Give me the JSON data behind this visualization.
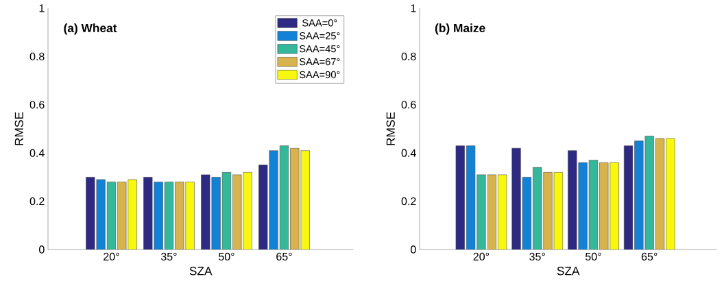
{
  "chart_data": [
    {
      "type": "bar",
      "annotations": [
        "(a) Wheat"
      ],
      "xlabel": "SZA",
      "ylabel": "RMSE",
      "categories": [
        "20°",
        "35°",
        "50°",
        "65°"
      ],
      "ylim": [
        0,
        1
      ],
      "yticks": [
        0,
        0.2,
        0.4,
        0.6,
        0.8,
        1
      ],
      "legend": "top right",
      "series": [
        {
          "name": "SAA=0°",
          "color": "#2e2a83",
          "values": [
            0.3,
            0.3,
            0.31,
            0.35
          ]
        },
        {
          "name": "SAA=25°",
          "color": "#1282d6",
          "values": [
            0.29,
            0.28,
            0.3,
            0.41
          ]
        },
        {
          "name": "SAA=45°",
          "color": "#35b89a",
          "values": [
            0.28,
            0.28,
            0.32,
            0.43
          ]
        },
        {
          "name": "SAA=67°",
          "color": "#d6b34c",
          "values": [
            0.28,
            0.28,
            0.31,
            0.42
          ]
        },
        {
          "name": "SAA=90°",
          "color": "#f8f80f",
          "values": [
            0.29,
            0.28,
            0.32,
            0.41
          ]
        }
      ]
    },
    {
      "type": "bar",
      "annotations": [
        "(b) Maize"
      ],
      "xlabel": "SZA",
      "ylabel": "RMSE",
      "categories": [
        "20°",
        "35°",
        "50°",
        "65°"
      ],
      "ylim": [
        0,
        1
      ],
      "yticks": [
        0,
        0.2,
        0.4,
        0.6,
        0.8,
        1
      ],
      "series": [
        {
          "color": "#2e2a83",
          "values": [
            0.43,
            0.42,
            0.41,
            0.43
          ]
        },
        {
          "color": "#1282d6",
          "values": [
            0.43,
            0.3,
            0.36,
            0.45
          ]
        },
        {
          "color": "#35b89a",
          "values": [
            0.31,
            0.34,
            0.37,
            0.47
          ]
        },
        {
          "color": "#d6b34c",
          "values": [
            0.31,
            0.32,
            0.36,
            0.46
          ]
        },
        {
          "color": "#f8f80f",
          "values": [
            0.31,
            0.32,
            0.36,
            0.46
          ]
        }
      ]
    }
  ]
}
